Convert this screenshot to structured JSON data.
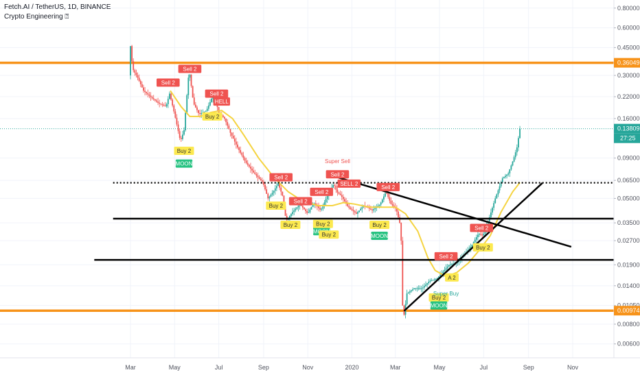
{
  "header": {
    "title": "Fetch.AI / TetherUS, 1D, BINANCE",
    "indicator": "Crypto Engineering ⍰"
  },
  "colors": {
    "candle_up": "#26a69a",
    "candle_down": "#ef5350",
    "ma": "#f5d33f",
    "support": "#f7931a",
    "trendline": "#000000",
    "price_line": "#26a69a",
    "sell_label": "#ef5350",
    "buy_label": "#fce94f",
    "moon_label": "#26c281",
    "super_sell_text": "#ef5350",
    "super_buy_text": "#26a69a"
  },
  "chart_data": {
    "type": "candlestick",
    "y_scale": "log",
    "ylim": [
      0.0049,
      0.9
    ],
    "y_ticks": [
      "0.80000",
      "0.60000",
      "0.45000",
      "0.30000",
      "0.22000",
      "0.16000",
      "0.09000",
      "0.06500",
      "0.05000",
      "0.03500",
      "0.02700",
      "0.01900",
      "0.01400",
      "0.01050",
      "0.00800",
      "0.00600"
    ],
    "x_ticks": [
      "Mar",
      "May",
      "Jul",
      "Sep",
      "Nov",
      "2020",
      "Mar",
      "May",
      "Jul",
      "Sep",
      "Nov"
    ],
    "x_tick_dates": [
      "2019-03-01",
      "2019-05-01",
      "2019-07-01",
      "2019-09-01",
      "2019-11-01",
      "2020-01-01",
      "2020-03-01",
      "2020-05-01",
      "2020-07-01",
      "2020-09-01",
      "2020-11-01"
    ],
    "price_path": [
      [
        "2019-02-28",
        0.3
      ],
      [
        "2019-03-02",
        0.46
      ],
      [
        "2019-03-05",
        0.33
      ],
      [
        "2019-03-12",
        0.29
      ],
      [
        "2019-03-20",
        0.24
      ],
      [
        "2019-04-01",
        0.215
      ],
      [
        "2019-04-10",
        0.2
      ],
      [
        "2019-04-20",
        0.19
      ],
      [
        "2019-04-25",
        0.23
      ],
      [
        "2019-05-02",
        0.17
      ],
      [
        "2019-05-10",
        0.115
      ],
      [
        "2019-05-15",
        0.135
      ],
      [
        "2019-05-22",
        0.33
      ],
      [
        "2019-05-28",
        0.2
      ],
      [
        "2019-06-05",
        0.17
      ],
      [
        "2019-06-15",
        0.18
      ],
      [
        "2019-06-25",
        0.23
      ],
      [
        "2019-07-02",
        0.175
      ],
      [
        "2019-07-10",
        0.16
      ],
      [
        "2019-07-18",
        0.13
      ],
      [
        "2019-07-28",
        0.105
      ],
      [
        "2019-08-08",
        0.085
      ],
      [
        "2019-08-20",
        0.072
      ],
      [
        "2019-09-01",
        0.063
      ],
      [
        "2019-09-08",
        0.05
      ],
      [
        "2019-09-15",
        0.055
      ],
      [
        "2019-09-22",
        0.062
      ],
      [
        "2019-09-28",
        0.052
      ],
      [
        "2019-10-03",
        0.036
      ],
      [
        "2019-10-12",
        0.041
      ],
      [
        "2019-10-22",
        0.046
      ],
      [
        "2019-11-02",
        0.04
      ],
      [
        "2019-11-10",
        0.047
      ],
      [
        "2019-11-20",
        0.042
      ],
      [
        "2019-11-30",
        0.053
      ],
      [
        "2019-12-08",
        0.062
      ],
      [
        "2019-12-12",
        0.055
      ],
      [
        "2019-12-18",
        0.052
      ],
      [
        "2019-12-28",
        0.044
      ],
      [
        "2020-01-08",
        0.04
      ],
      [
        "2020-01-18",
        0.045
      ],
      [
        "2020-01-30",
        0.042
      ],
      [
        "2020-02-10",
        0.046
      ],
      [
        "2020-02-18",
        0.055
      ],
      [
        "2020-02-25",
        0.046
      ],
      [
        "2020-03-03",
        0.043
      ],
      [
        "2020-03-08",
        0.035
      ],
      [
        "2020-03-10",
        0.027
      ],
      [
        "2020-03-12",
        0.0105
      ],
      [
        "2020-03-13",
        0.0085
      ],
      [
        "2020-03-18",
        0.0125
      ],
      [
        "2020-03-28",
        0.0135
      ],
      [
        "2020-04-08",
        0.0135
      ],
      [
        "2020-04-18",
        0.015
      ],
      [
        "2020-04-28",
        0.0155
      ],
      [
        "2020-05-06",
        0.017
      ],
      [
        "2020-05-15",
        0.019
      ],
      [
        "2020-05-25",
        0.0195
      ],
      [
        "2020-06-05",
        0.022
      ],
      [
        "2020-06-15",
        0.025
      ],
      [
        "2020-06-25",
        0.03
      ],
      [
        "2020-07-01",
        0.029
      ],
      [
        "2020-07-10",
        0.038
      ],
      [
        "2020-07-18",
        0.05
      ],
      [
        "2020-07-28",
        0.067
      ],
      [
        "2020-08-05",
        0.072
      ],
      [
        "2020-08-12",
        0.088
      ],
      [
        "2020-08-17",
        0.105
      ],
      [
        "2020-08-21",
        0.138
      ]
    ],
    "moving_average": [
      [
        "2019-04-25",
        0.24
      ],
      [
        "2019-05-10",
        0.19
      ],
      [
        "2019-05-22",
        0.165
      ],
      [
        "2019-06-05",
        0.165
      ],
      [
        "2019-06-20",
        0.175
      ],
      [
        "2019-07-05",
        0.18
      ],
      [
        "2019-07-20",
        0.16
      ],
      [
        "2019-08-05",
        0.125
      ],
      [
        "2019-08-25",
        0.09
      ],
      [
        "2019-09-15",
        0.068
      ],
      [
        "2019-10-05",
        0.055
      ],
      [
        "2019-10-25",
        0.048
      ],
      [
        "2019-11-15",
        0.045
      ],
      [
        "2019-12-05",
        0.045
      ],
      [
        "2019-12-20",
        0.047
      ],
      [
        "2020-01-05",
        0.046
      ],
      [
        "2020-01-25",
        0.044
      ],
      [
        "2020-02-10",
        0.044
      ],
      [
        "2020-03-01",
        0.044
      ],
      [
        "2020-03-15",
        0.04
      ],
      [
        "2020-04-01",
        0.031
      ],
      [
        "2020-04-15",
        0.021
      ],
      [
        "2020-04-25",
        0.0175
      ],
      [
        "2020-05-10",
        0.016
      ],
      [
        "2020-05-25",
        0.017
      ],
      [
        "2020-06-10",
        0.0195
      ],
      [
        "2020-06-25",
        0.0235
      ],
      [
        "2020-07-10",
        0.029
      ],
      [
        "2020-07-25",
        0.041
      ],
      [
        "2020-08-10",
        0.055
      ],
      [
        "2020-08-20",
        0.063
      ]
    ],
    "horizontal_levels": [
      {
        "value": 0.36049,
        "label": "0.36049",
        "style": "orange"
      },
      {
        "value": 0.00974,
        "label": "0.00974",
        "style": "orange"
      },
      {
        "value": 0.13809,
        "label": "0.13809",
        "style": "price",
        "countdown": "27:25"
      }
    ],
    "signals": [
      {
        "date": "2019-04-22",
        "price": 0.27,
        "text": "Sell 2",
        "kind": "sell"
      },
      {
        "date": "2019-05-22",
        "price": 0.33,
        "text": "Sell 2",
        "kind": "sell"
      },
      {
        "date": "2019-06-28",
        "price": 0.23,
        "text": "Sell 2",
        "kind": "sell"
      },
      {
        "date": "2019-07-05",
        "price": 0.205,
        "text": "HELL",
        "kind": "sell"
      },
      {
        "date": "2019-06-22",
        "price": 0.165,
        "text": "Buy 2",
        "kind": "buy"
      },
      {
        "date": "2019-05-14",
        "price": 0.1,
        "text": "Buy 2",
        "kind": "buy"
      },
      {
        "date": "2019-05-14",
        "price": 0.083,
        "text": "MOON",
        "kind": "moon"
      },
      {
        "date": "2019-09-25",
        "price": 0.068,
        "text": "Sell 2",
        "kind": "sell"
      },
      {
        "date": "2019-09-18",
        "price": 0.045,
        "text": "Buy 2",
        "kind": "buy"
      },
      {
        "date": "2019-10-22",
        "price": 0.048,
        "text": "Sell 2",
        "kind": "sell"
      },
      {
        "date": "2019-11-20",
        "price": 0.055,
        "text": "Sell 2",
        "kind": "sell"
      },
      {
        "date": "2019-10-08",
        "price": 0.034,
        "text": "Buy 2",
        "kind": "buy"
      },
      {
        "date": "2019-11-20",
        "price": 0.031,
        "text": "MOON",
        "kind": "moon"
      },
      {
        "date": "2019-11-22",
        "price": 0.0345,
        "text": "Buy 2",
        "kind": "buy"
      },
      {
        "date": "2019-11-30",
        "price": 0.0295,
        "text": "Buy 2",
        "kind": "buy"
      },
      {
        "date": "2019-12-12",
        "price": 0.071,
        "text": "Sell 2",
        "kind": "sell"
      },
      {
        "date": "2019-12-12",
        "price": 0.086,
        "text": "Super Sell",
        "kind": "super_sell"
      },
      {
        "date": "2019-12-28",
        "price": 0.062,
        "text": "SELL 2",
        "kind": "sell"
      },
      {
        "date": "2020-02-20",
        "price": 0.059,
        "text": "Sell 2",
        "kind": "sell"
      },
      {
        "date": "2020-02-08",
        "price": 0.034,
        "text": "Buy 2",
        "kind": "buy"
      },
      {
        "date": "2020-02-08",
        "price": 0.029,
        "text": "MOON",
        "kind": "moon"
      },
      {
        "date": "2020-05-10",
        "price": 0.0215,
        "text": "Sell 2",
        "kind": "sell"
      },
      {
        "date": "2020-05-18",
        "price": 0.0158,
        "text": "A 2",
        "kind": "buy"
      },
      {
        "date": "2020-04-30",
        "price": 0.0118,
        "text": "Buy 2",
        "kind": "buy"
      },
      {
        "date": "2020-05-10",
        "price": 0.0125,
        "text": "Super Buy",
        "kind": "super_buy"
      },
      {
        "date": "2020-04-30",
        "price": 0.0105,
        "text": "MOON",
        "kind": "moon"
      },
      {
        "date": "2020-06-28",
        "price": 0.0325,
        "text": "Sell 2",
        "kind": "sell"
      },
      {
        "date": "2020-06-30",
        "price": 0.0245,
        "text": "Buy 2",
        "kind": "buy"
      }
    ],
    "drawn_lines": [
      {
        "name": "dotted-resistance",
        "style": "dotted",
        "from": [
          "2019-02-05",
          0.0628
        ],
        "to": [
          "2021-01-01",
          0.0628
        ]
      },
      {
        "name": "support-line-upper",
        "style": "solid",
        "from": [
          "2019-02-05",
          0.0372
        ],
        "to": [
          "2021-01-01",
          0.0372
        ]
      },
      {
        "name": "support-line-lower",
        "style": "solid",
        "from": [
          "2019-01-10",
          0.0204
        ],
        "to": [
          "2021-01-01",
          0.0204
        ]
      },
      {
        "name": "descending-trendline",
        "style": "solid",
        "from": [
          "2019-12-12",
          0.068
        ],
        "to": [
          "2020-10-30",
          0.0247
        ]
      },
      {
        "name": "ascending-trendline",
        "style": "solid",
        "from": [
          "2020-03-13",
          0.0097
        ],
        "to": [
          "2020-09-20",
          0.0625
        ]
      }
    ]
  }
}
